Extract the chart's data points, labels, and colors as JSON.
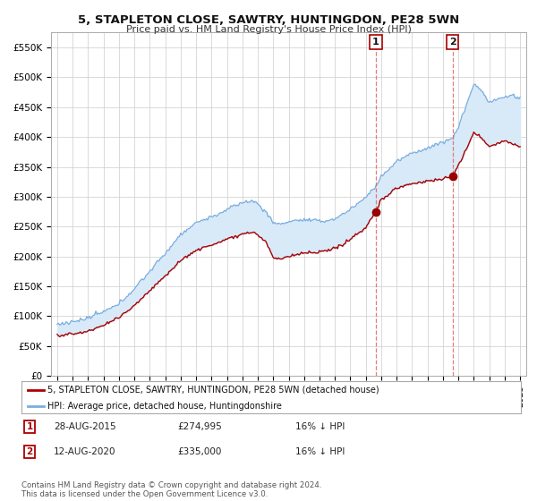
{
  "title": "5, STAPLETON CLOSE, SAWTRY, HUNTINGDON, PE28 5WN",
  "subtitle": "Price paid vs. HM Land Registry's House Price Index (HPI)",
  "ylabel_ticks": [
    "£0",
    "£50K",
    "£100K",
    "£150K",
    "£200K",
    "£250K",
    "£300K",
    "£350K",
    "£400K",
    "£450K",
    "£500K",
    "£550K"
  ],
  "ytick_values": [
    0,
    50000,
    100000,
    150000,
    200000,
    250000,
    300000,
    350000,
    400000,
    450000,
    500000,
    550000
  ],
  "ylim": [
    0,
    575000
  ],
  "xlim": [
    1994.6,
    2025.4
  ],
  "sale1_x": 2015.65,
  "sale1_y": 274995,
  "sale2_x": 2020.62,
  "sale2_y": 335000,
  "legend_house": "5, STAPLETON CLOSE, SAWTRY, HUNTINGDON, PE28 5WN (detached house)",
  "legend_hpi": "HPI: Average price, detached house, Huntingdonshire",
  "footer": "Contains HM Land Registry data © Crown copyright and database right 2024.\nThis data is licensed under the Open Government Licence v3.0.",
  "house_color": "#aa0000",
  "hpi_color": "#7aade0",
  "fill_color": "#d8eaf8",
  "marker_color": "#990000",
  "background_color": "#ffffff",
  "plot_bg": "#ffffff",
  "grid_color": "#cccccc",
  "vline_color": "#dd6666"
}
